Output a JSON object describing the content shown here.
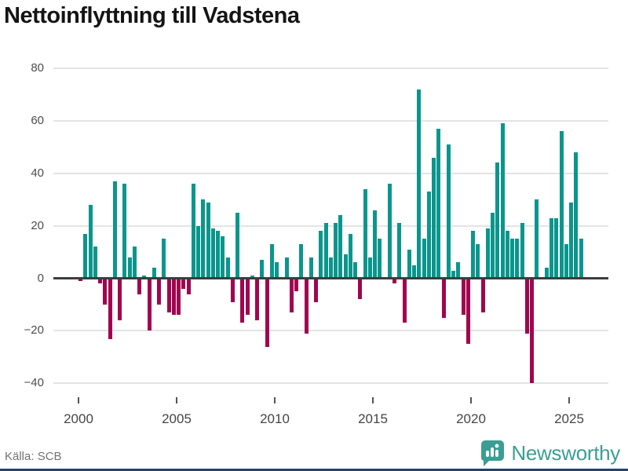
{
  "title": "Nettoinflyttning till Vadstena",
  "source": "Källa: SCB",
  "brand": {
    "name": "Newsworthy"
  },
  "colors": {
    "positive_bar": "#0a968c",
    "negative_bar": "#a1054f",
    "brand_teal": "#3a9e94",
    "footer_strip": "#25426a"
  },
  "chart_data": {
    "type": "bar",
    "title": "Nettoinflyttning till Vadstena",
    "period": "quarterly",
    "start_year": 2000,
    "start_quarter": 1,
    "grid": true,
    "y_ticks": [
      80,
      60,
      40,
      20,
      0,
      -20,
      -40
    ],
    "ylim": [
      -45,
      85
    ],
    "x_tick_years": [
      2000,
      2005,
      2010,
      2015,
      2020,
      2025
    ],
    "values": [
      -1,
      17,
      28,
      12,
      -2,
      -10,
      -23,
      37,
      -16,
      36,
      8,
      12,
      -6,
      1,
      -20,
      4,
      -10,
      15,
      -13,
      -14,
      -14,
      -4,
      -6,
      36,
      20,
      30,
      29,
      19,
      18,
      16,
      8,
      -9,
      25,
      -17,
      -14,
      1,
      -16,
      7,
      -26,
      13,
      6,
      0,
      8,
      -13,
      -5,
      13,
      -21,
      8,
      -9,
      18,
      21,
      8,
      21,
      24,
      9,
      17,
      6,
      -8,
      34,
      8,
      26,
      15,
      0,
      36,
      -2,
      21,
      -17,
      11,
      5,
      72,
      15,
      33,
      46,
      57,
      -15,
      51,
      3,
      6,
      -14,
      -25,
      18,
      13,
      -13,
      19,
      25,
      44,
      59,
      18,
      15,
      15,
      21,
      -21,
      -40,
      30,
      0,
      4,
      23,
      23,
      56,
      13,
      29,
      48,
      15
    ]
  }
}
